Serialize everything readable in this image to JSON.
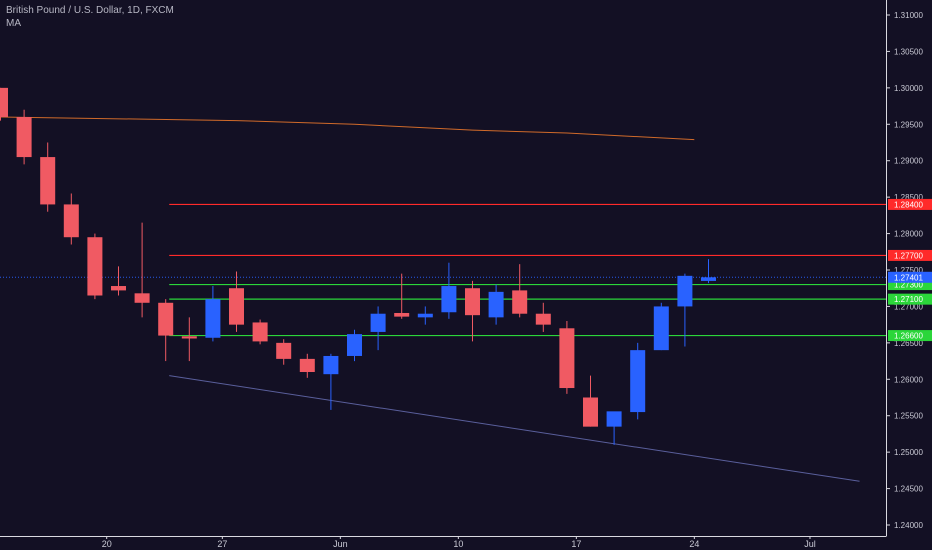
{
  "header": {
    "symbol": "British Pound / U.S. Dollar, 1D, FXCM",
    "indicator": "MA"
  },
  "colors": {
    "background": "#131024",
    "up": "#2962ff",
    "down": "#f05a63",
    "resistance": "#ff2a2a",
    "support": "#2bd63a",
    "ma": "#d06a2a",
    "trend": "#5a5f9c",
    "price": "#2962ff",
    "axis_text": "#c9c9d4"
  },
  "chart_data": {
    "type": "candlestick",
    "title": "British Pound / U.S. Dollar, 1D, FXCM",
    "ylim": [
      1.2375,
      1.3135
    ],
    "y_ticks": [
      "1.24000",
      "1.24500",
      "1.25000",
      "1.25500",
      "1.26000",
      "1.26500",
      "1.27000",
      "1.27500",
      "1.28000",
      "1.28500",
      "1.29000",
      "1.29500",
      "1.30000",
      "1.30500",
      "1.31000"
    ],
    "x_tick_labels": [
      {
        "label": "20",
        "index": 4.5
      },
      {
        "label": "27",
        "index": 9.4
      },
      {
        "label": "Jun",
        "index": 14.4
      },
      {
        "label": "10",
        "index": 19.4
      },
      {
        "label": "17",
        "index": 24.4
      },
      {
        "label": "24",
        "index": 29.4
      },
      {
        "label": "Jul",
        "index": 34.3
      }
    ],
    "candles": [
      {
        "o": 1.3,
        "h": 1.3,
        "l": 1.2955,
        "c": 1.296
      },
      {
        "o": 1.296,
        "h": 1.297,
        "l": 1.2895,
        "c": 1.2905
      },
      {
        "o": 1.2905,
        "h": 1.2925,
        "l": 1.283,
        "c": 1.284
      },
      {
        "o": 1.284,
        "h": 1.2855,
        "l": 1.2785,
        "c": 1.2795
      },
      {
        "o": 1.2795,
        "h": 1.28,
        "l": 1.271,
        "c": 1.2715
      },
      {
        "o": 1.2728,
        "h": 1.2755,
        "l": 1.2715,
        "c": 1.2722
      },
      {
        "o": 1.2718,
        "h": 1.2815,
        "l": 1.2685,
        "c": 1.2705
      },
      {
        "o": 1.2705,
        "h": 1.271,
        "l": 1.2625,
        "c": 1.266
      },
      {
        "o": 1.2659,
        "h": 1.2685,
        "l": 1.2625,
        "c": 1.2656
      },
      {
        "o": 1.2657,
        "h": 1.2728,
        "l": 1.2652,
        "c": 1.271
      },
      {
        "o": 1.2725,
        "h": 1.2748,
        "l": 1.2665,
        "c": 1.2675
      },
      {
        "o": 1.2678,
        "h": 1.2682,
        "l": 1.2648,
        "c": 1.2652
      },
      {
        "o": 1.265,
        "h": 1.2655,
        "l": 1.262,
        "c": 1.2628
      },
      {
        "o": 1.2628,
        "h": 1.2635,
        "l": 1.2602,
        "c": 1.261
      },
      {
        "o": 1.2607,
        "h": 1.2635,
        "l": 1.2558,
        "c": 1.2632
      },
      {
        "o": 1.2632,
        "h": 1.2668,
        "l": 1.2625,
        "c": 1.2662
      },
      {
        "o": 1.2665,
        "h": 1.27,
        "l": 1.264,
        "c": 1.269
      },
      {
        "o": 1.2691,
        "h": 1.2745,
        "l": 1.2683,
        "c": 1.2686
      },
      {
        "o": 1.2685,
        "h": 1.27,
        "l": 1.2675,
        "c": 1.269
      },
      {
        "o": 1.2692,
        "h": 1.276,
        "l": 1.2683,
        "c": 1.2728
      },
      {
        "o": 1.2725,
        "h": 1.2735,
        "l": 1.2652,
        "c": 1.2688
      },
      {
        "o": 1.2685,
        "h": 1.273,
        "l": 1.2675,
        "c": 1.272
      },
      {
        "o": 1.2722,
        "h": 1.2758,
        "l": 1.2685,
        "c": 1.269
      },
      {
        "o": 1.269,
        "h": 1.2705,
        "l": 1.2665,
        "c": 1.2675
      },
      {
        "o": 1.267,
        "h": 1.268,
        "l": 1.258,
        "c": 1.2588
      },
      {
        "o": 1.2575,
        "h": 1.2605,
        "l": 1.2535,
        "c": 1.2535
      },
      {
        "o": 1.2535,
        "h": 1.2555,
        "l": 1.251,
        "c": 1.2556
      },
      {
        "o": 1.2555,
        "h": 1.265,
        "l": 1.2545,
        "c": 1.264
      },
      {
        "o": 1.264,
        "h": 1.2705,
        "l": 1.264,
        "c": 1.27
      },
      {
        "o": 1.27,
        "h": 1.2745,
        "l": 1.2645,
        "c": 1.2742
      },
      {
        "o": 1.2735,
        "h": 1.2765,
        "l": 1.2732,
        "c": 1.274
      }
    ],
    "horizontal_levels": [
      {
        "price": 1.284,
        "label": "1.28400",
        "kind": "resistance"
      },
      {
        "price": 1.277,
        "label": "1.27700",
        "kind": "resistance"
      },
      {
        "price": 1.273,
        "label": "1.27300",
        "kind": "support"
      },
      {
        "price": 1.271,
        "label": "1.27100",
        "kind": "support"
      },
      {
        "price": 1.266,
        "label": "1.26600",
        "kind": "support"
      }
    ],
    "last_price": {
      "price": 1.274,
      "label": "1.27401"
    },
    "moving_average": [
      {
        "index": 0,
        "value": 1.296
      },
      {
        "index": 10,
        "value": 1.2955
      },
      {
        "index": 15,
        "value": 1.295
      },
      {
        "index": 20,
        "value": 1.2942
      },
      {
        "index": 24,
        "value": 1.2938
      },
      {
        "index": 29.4,
        "value": 1.2929
      }
    ],
    "trendline": {
      "start": {
        "index": 7.15,
        "value": 1.2605
      },
      "end": {
        "index": 36.4,
        "value": 1.246
      }
    },
    "level_lines_start_index": 7.15
  }
}
